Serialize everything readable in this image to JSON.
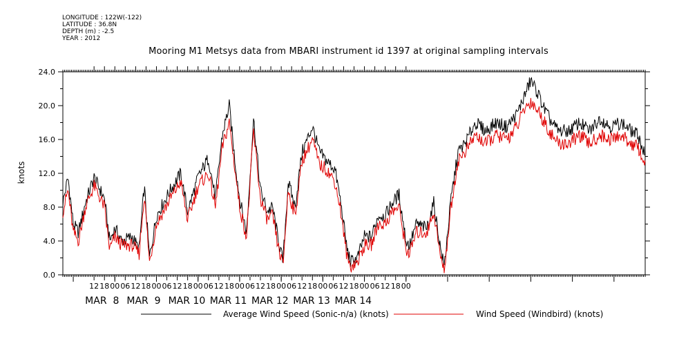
{
  "meta": {
    "longitude": "LONGITUDE : 122W(-122)",
    "latitude": "LATITUDE : 36.8N",
    "depth": "DEPTH (m) : -2.5",
    "year": "YEAR : 2012"
  },
  "chart_data": {
    "type": "line",
    "title": "Mooring M1 Metsys data from MBARI instrument id 1397 at original sampling intervals",
    "ylabel": "knots",
    "ylim": [
      0,
      24
    ],
    "y_ticks": [
      "0.0",
      "4.0",
      "8.0",
      "12.0",
      "16.0",
      "20.0",
      "24.0"
    ],
    "x_range_hours": [
      "MAR 7 18:00",
      "MAR 15 00:00"
    ],
    "x_tick_labels": [
      "12",
      "18",
      "00",
      "06",
      "12",
      "18",
      "00",
      "06",
      "12",
      "18",
      "00",
      "06",
      "12",
      "18",
      "00",
      "06",
      "12",
      "18",
      "00",
      "06",
      "12",
      "18",
      "00",
      "06",
      "12",
      "18",
      "00",
      "06",
      "12",
      "18",
      "00"
    ],
    "date_labels": [
      "MAR  8",
      "MAR  9",
      "MAR 10",
      "MAR 11",
      "MAR 12",
      "MAR 13",
      "MAR 14"
    ],
    "legend": [
      {
        "name": "Average Wind Speed (Sonic-n/a) (knots)",
        "color": "#000000"
      },
      {
        "name": "Wind Speed (Windbird) (knots)",
        "color": "#e00000"
      }
    ],
    "series": [
      {
        "name": "Average Wind Speed (Sonic-n/a) (knots)",
        "color": "#000000",
        "keypoints_hours_knots": [
          [
            0,
            8.5
          ],
          [
            3,
            11.5
          ],
          [
            6,
            6.0
          ],
          [
            9,
            5.0
          ],
          [
            13,
            8.5
          ],
          [
            18,
            11.5
          ],
          [
            24,
            9.0
          ],
          [
            27,
            4.0
          ],
          [
            30,
            5.5
          ],
          [
            34,
            4.0
          ],
          [
            40,
            4.5
          ],
          [
            44,
            3.0
          ],
          [
            47,
            10.5
          ],
          [
            50,
            2.0
          ],
          [
            54,
            7.0
          ],
          [
            58,
            8.5
          ],
          [
            62,
            10.0
          ],
          [
            68,
            12.0
          ],
          [
            72,
            7.5
          ],
          [
            78,
            11.5
          ],
          [
            84,
            13.8
          ],
          [
            88,
            9.0
          ],
          [
            92,
            16.5
          ],
          [
            96,
            20.0
          ],
          [
            99,
            14.0
          ],
          [
            102,
            9.0
          ],
          [
            106,
            5.0
          ],
          [
            110,
            18.5
          ],
          [
            114,
            10.0
          ],
          [
            118,
            7.5
          ],
          [
            121,
            8.0
          ],
          [
            124,
            4.5
          ],
          [
            127,
            1.5
          ],
          [
            130,
            11.0
          ],
          [
            134,
            8.0
          ],
          [
            138,
            14.5
          ],
          [
            144,
            17.5
          ],
          [
            148,
            14.5
          ],
          [
            152,
            13.5
          ],
          [
            157,
            12.5
          ],
          [
            160,
            9.0
          ],
          [
            164,
            3.0
          ],
          [
            166,
            1.5
          ],
          [
            170,
            2.0
          ],
          [
            174,
            4.5
          ],
          [
            178,
            4.5
          ],
          [
            182,
            7.0
          ],
          [
            186,
            7.0
          ],
          [
            190,
            8.5
          ],
          [
            194,
            9.5
          ],
          [
            198,
            4.0
          ],
          [
            200,
            3.5
          ],
          [
            204,
            6.0
          ],
          [
            210,
            5.5
          ],
          [
            214,
            8.5
          ],
          [
            218,
            3.0
          ],
          [
            220,
            1.0
          ],
          [
            224,
            9.0
          ],
          [
            228,
            14.5
          ],
          [
            232,
            15.5
          ],
          [
            238,
            18.0
          ],
          [
            244,
            17.0
          ],
          [
            250,
            18.0
          ],
          [
            256,
            17.5
          ],
          [
            262,
            19.0
          ],
          [
            266,
            21.0
          ],
          [
            270,
            23.0
          ],
          [
            274,
            21.5
          ],
          [
            278,
            19.5
          ],
          [
            282,
            18.0
          ],
          [
            286,
            17.0
          ],
          [
            292,
            17.0
          ],
          [
            298,
            18.0
          ],
          [
            304,
            17.0
          ],
          [
            310,
            18.5
          ],
          [
            316,
            17.5
          ],
          [
            322,
            18.0
          ],
          [
            328,
            17.0
          ],
          [
            332,
            16.5
          ],
          [
            336,
            14.0
          ]
        ]
      },
      {
        "name": "Wind Speed (Windbird) (knots)",
        "color": "#e00000",
        "keypoints_hours_knots": [
          [
            0,
            7.5
          ],
          [
            3,
            10.0
          ],
          [
            6,
            5.0
          ],
          [
            9,
            4.0
          ],
          [
            13,
            8.0
          ],
          [
            18,
            10.5
          ],
          [
            24,
            8.0
          ],
          [
            27,
            3.0
          ],
          [
            30,
            4.5
          ],
          [
            34,
            3.5
          ],
          [
            40,
            3.5
          ],
          [
            44,
            2.5
          ],
          [
            47,
            9.5
          ],
          [
            50,
            1.5
          ],
          [
            54,
            6.0
          ],
          [
            58,
            7.5
          ],
          [
            62,
            9.0
          ],
          [
            68,
            11.0
          ],
          [
            72,
            6.5
          ],
          [
            78,
            10.5
          ],
          [
            84,
            12.0
          ],
          [
            88,
            8.0
          ],
          [
            92,
            15.0
          ],
          [
            96,
            18.0
          ],
          [
            99,
            13.0
          ],
          [
            102,
            8.0
          ],
          [
            106,
            4.5
          ],
          [
            110,
            17.0
          ],
          [
            114,
            9.0
          ],
          [
            118,
            6.5
          ],
          [
            121,
            7.0
          ],
          [
            124,
            3.5
          ],
          [
            127,
            1.0
          ],
          [
            130,
            10.0
          ],
          [
            134,
            7.0
          ],
          [
            138,
            13.5
          ],
          [
            144,
            16.0
          ],
          [
            148,
            13.0
          ],
          [
            152,
            12.5
          ],
          [
            157,
            11.0
          ],
          [
            160,
            8.0
          ],
          [
            164,
            2.0
          ],
          [
            166,
            1.0
          ],
          [
            170,
            1.5
          ],
          [
            174,
            3.5
          ],
          [
            178,
            3.5
          ],
          [
            182,
            6.0
          ],
          [
            186,
            6.0
          ],
          [
            190,
            7.5
          ],
          [
            194,
            8.0
          ],
          [
            198,
            3.0
          ],
          [
            200,
            2.5
          ],
          [
            204,
            5.0
          ],
          [
            210,
            5.0
          ],
          [
            214,
            7.5
          ],
          [
            218,
            2.0
          ],
          [
            220,
            0.5
          ],
          [
            224,
            8.0
          ],
          [
            228,
            13.5
          ],
          [
            232,
            14.5
          ],
          [
            238,
            16.5
          ],
          [
            244,
            15.5
          ],
          [
            250,
            16.5
          ],
          [
            256,
            16.0
          ],
          [
            262,
            17.5
          ],
          [
            266,
            19.5
          ],
          [
            270,
            20.5
          ],
          [
            274,
            19.5
          ],
          [
            278,
            18.0
          ],
          [
            282,
            16.5
          ],
          [
            286,
            15.5
          ],
          [
            292,
            15.5
          ],
          [
            298,
            16.5
          ],
          [
            304,
            15.5
          ],
          [
            310,
            16.5
          ],
          [
            316,
            16.0
          ],
          [
            322,
            16.5
          ],
          [
            328,
            15.5
          ],
          [
            332,
            15.0
          ],
          [
            336,
            13.0
          ]
        ]
      }
    ]
  }
}
